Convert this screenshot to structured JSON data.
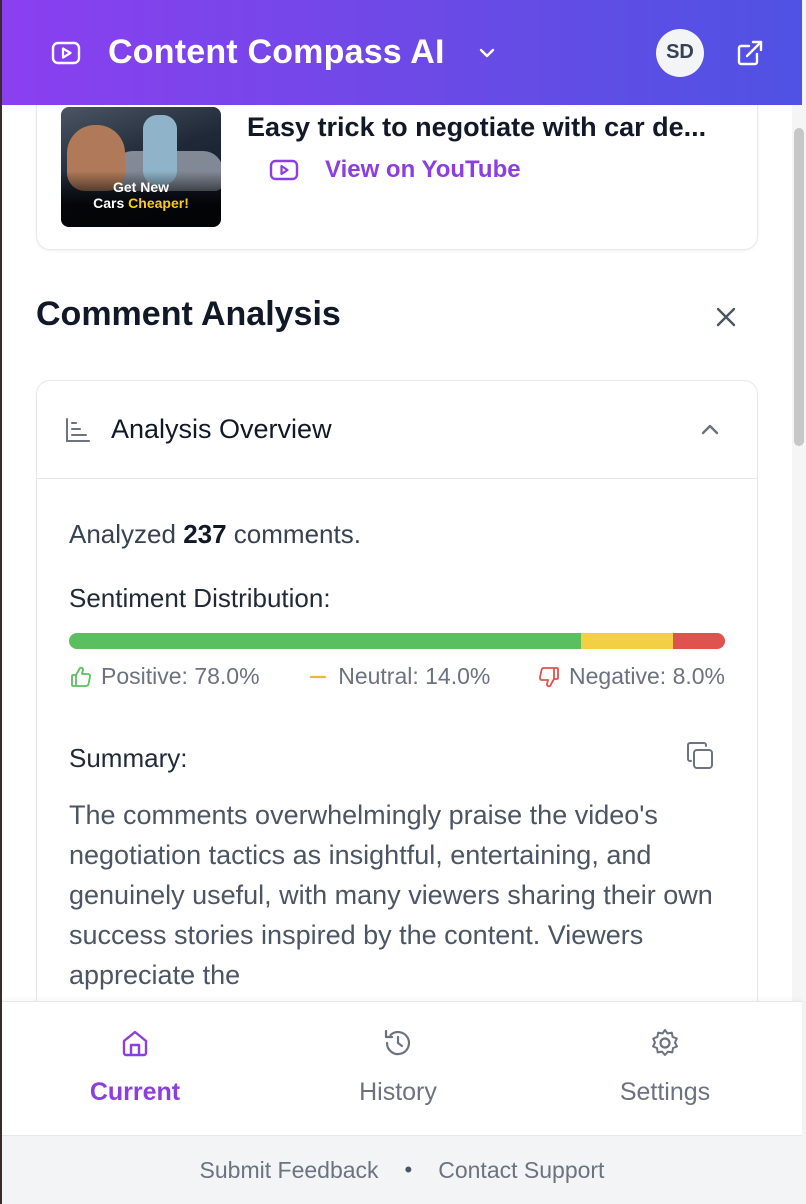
{
  "header": {
    "app_title": "Content Compass AI",
    "avatar_initials": "SD",
    "gradient_start": "#8b3ff0",
    "gradient_end": "#4f52e3"
  },
  "video": {
    "title": "Easy trick to negotiate with car de...",
    "thumbnail_text_line1": "Get New",
    "thumbnail_text_line2_a": "Cars ",
    "thumbnail_text_line2_b": "Cheaper!",
    "link_label": "View on YouTube"
  },
  "comment_analysis": {
    "title": "Comment Analysis"
  },
  "overview": {
    "title": "Analysis Overview",
    "analyzed_prefix": "Analyzed ",
    "analyzed_count": "237",
    "analyzed_suffix": " comments.",
    "sentiment_label": "Sentiment Distribution:",
    "sentiment": {
      "positive_pct": 78.0,
      "neutral_pct": 14.0,
      "negative_pct": 8.0,
      "positive_label": "Positive: 78.0%",
      "neutral_label": "Neutral: 14.0%",
      "negative_label": "Negative: 8.0%",
      "positive_color": "#5cbf5f",
      "neutral_color": "#f2cf44",
      "negative_color": "#e0524d"
    },
    "summary_label": "Summary:",
    "summary_text": "The comments overwhelmingly praise the video's negotiation tactics as insightful, entertaining, and genuinely useful, with many viewers sharing their own success stories inspired by the content. Viewers appreciate the"
  },
  "bottom_nav": {
    "items": [
      {
        "label": "Current",
        "icon": "home-icon",
        "active": true
      },
      {
        "label": "History",
        "icon": "history-icon",
        "active": false
      },
      {
        "label": "Settings",
        "icon": "gear-icon",
        "active": false
      }
    ],
    "accent": "#8b3fe0"
  },
  "footer": {
    "feedback_label": "Submit Feedback",
    "separator": "•",
    "support_label": "Contact Support"
  }
}
